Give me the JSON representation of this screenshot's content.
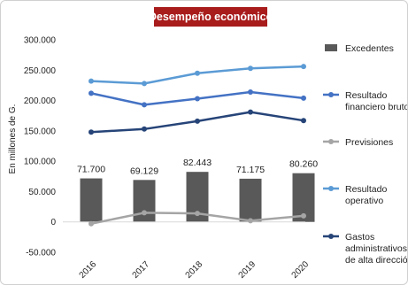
{
  "chart_data": {
    "type": "bar",
    "title": "Desempeño económico",
    "ylabel": "En millones de G.",
    "xlabel": "",
    "categories": [
      "2016",
      "2017",
      "2018",
      "2019",
      "2020"
    ],
    "ylim": [
      -50000,
      300000
    ],
    "yticks": [
      "300.000",
      "250.000",
      "200.000",
      "150.000",
      "100.000",
      "50.000",
      "0",
      "-50.000"
    ],
    "grid": false,
    "legend_position": "right",
    "series": [
      {
        "name": "Excedentes",
        "kind": "bar",
        "color": "#595959",
        "values": [
          71700,
          69129,
          82443,
          71175,
          80260
        ],
        "labels": [
          "71.700",
          "69.129",
          "82.443",
          "71.175",
          "80.260"
        ]
      },
      {
        "name": "Resultado financiero bruto",
        "kind": "line",
        "color": "#4472c4",
        "values": [
          212000,
          193000,
          203000,
          214000,
          204000
        ]
      },
      {
        "name": "Previsiones",
        "kind": "line",
        "color": "#a5a5a5",
        "values": [
          -3000,
          15000,
          14000,
          2000,
          10000
        ]
      },
      {
        "name": "Resultado operativo",
        "kind": "line",
        "color": "#5b9bd5",
        "values": [
          232000,
          228000,
          245000,
          253000,
          256000
        ]
      },
      {
        "name": "Gastos administrativos y de alta dirección",
        "kind": "line",
        "color": "#264478",
        "values": [
          148000,
          153000,
          166000,
          181000,
          167000
        ]
      }
    ],
    "legend_labels": [
      [
        "Excedentes"
      ],
      [
        "Resultado",
        "financiero bruto"
      ],
      [
        "Previsiones"
      ],
      [
        "Resultado",
        "operativo"
      ],
      [
        "Gastos",
        "administrativos y",
        "de alta dirección"
      ]
    ]
  }
}
